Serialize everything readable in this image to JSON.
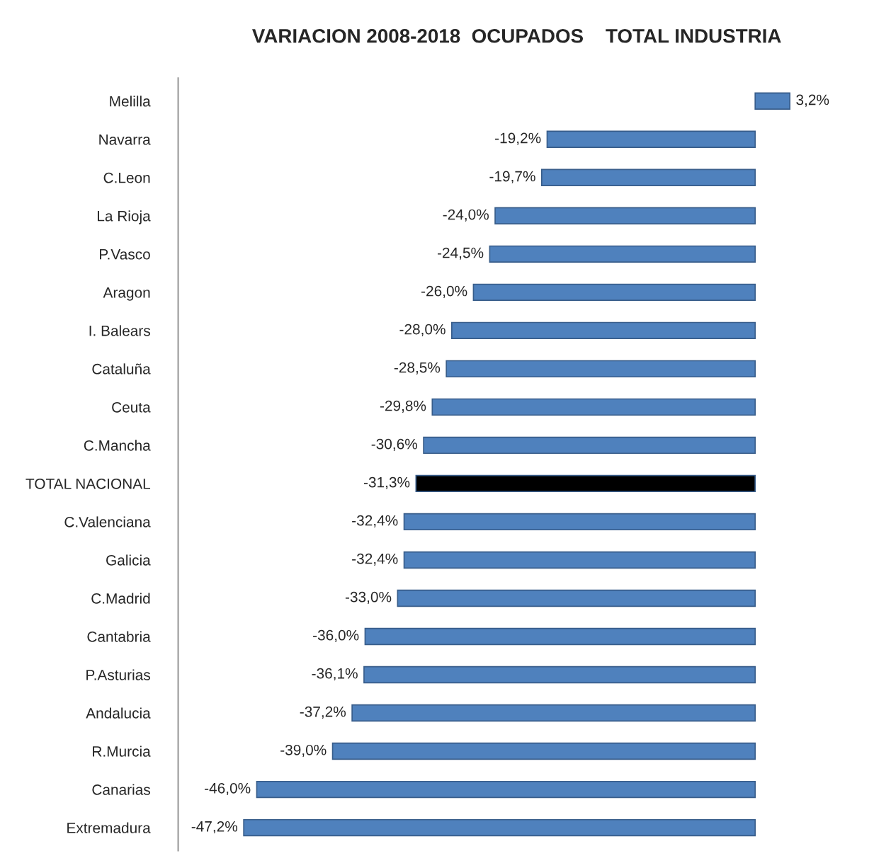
{
  "chart_data": {
    "type": "bar",
    "orientation": "horizontal",
    "title": "VARIACION 2008-2018  OCUPADOS    TOTAL INDUSTRIA",
    "categories": [
      "Melilla",
      "Navarra",
      "C.Leon",
      "La Rioja",
      "P.Vasco",
      "Aragon",
      "I. Balears",
      "Cataluña",
      "Ceuta",
      "C.Mancha",
      "TOTAL NACIONAL",
      "C.Valenciana",
      "Galicia",
      "C.Madrid",
      "Cantabria",
      "P.Asturias",
      "Andalucia",
      "R.Murcia",
      "Canarias",
      "Extremadura"
    ],
    "values": [
      3.2,
      -19.2,
      -19.7,
      -24.0,
      -24.5,
      -26.0,
      -28.0,
      -28.5,
      -29.8,
      -30.6,
      -31.3,
      -32.4,
      -32.4,
      -33.0,
      -36.0,
      -36.1,
      -37.2,
      -39.0,
      -46.0,
      -47.2
    ],
    "value_labels": [
      "3,2%",
      "-19,2%",
      "-19,7%",
      "-24,0%",
      "-24,5%",
      "-26,0%",
      "-28,0%",
      "-28,5%",
      "-29,8%",
      "-30,6%",
      "-31,3%",
      "-32,4%",
      "-32,4%",
      "-33,0%",
      "-36,0%",
      "-36,1%",
      "-37,2%",
      "-39,0%",
      "-46,0%",
      "-47,2%"
    ],
    "colors": [
      "#4f81bd",
      "#4f81bd",
      "#4f81bd",
      "#4f81bd",
      "#4f81bd",
      "#4f81bd",
      "#4f81bd",
      "#4f81bd",
      "#4f81bd",
      "#4f81bd",
      "#000000",
      "#4f81bd",
      "#4f81bd",
      "#4f81bd",
      "#4f81bd",
      "#4f81bd",
      "#4f81bd",
      "#4f81bd",
      "#4f81bd",
      "#4f81bd"
    ],
    "tick_labels": "y",
    "grid": false,
    "legend": false
  }
}
